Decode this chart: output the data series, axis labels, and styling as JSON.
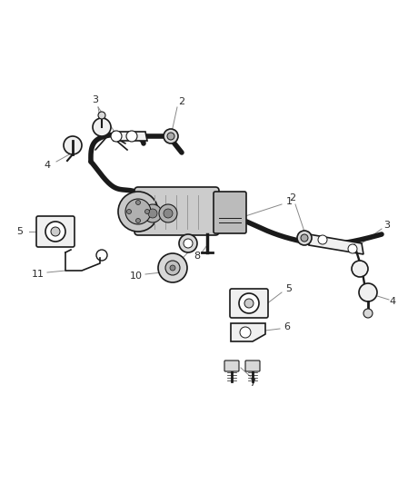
{
  "bg_color": "#ffffff",
  "lc": "#2a2a2a",
  "glc": "#888888",
  "fig_w": 4.38,
  "fig_h": 5.33,
  "dpi": 100,
  "bar_lw": 4.0,
  "bar_color": "#1a1a1a",
  "label_fs": 8,
  "leader_color": "#888888",
  "leader_lw": 0.7,
  "part_lw": 1.2,
  "part_color": "#1a1a1a",
  "part_fill": "#d8d8d8",
  "part_fill2": "#f0f0f0"
}
